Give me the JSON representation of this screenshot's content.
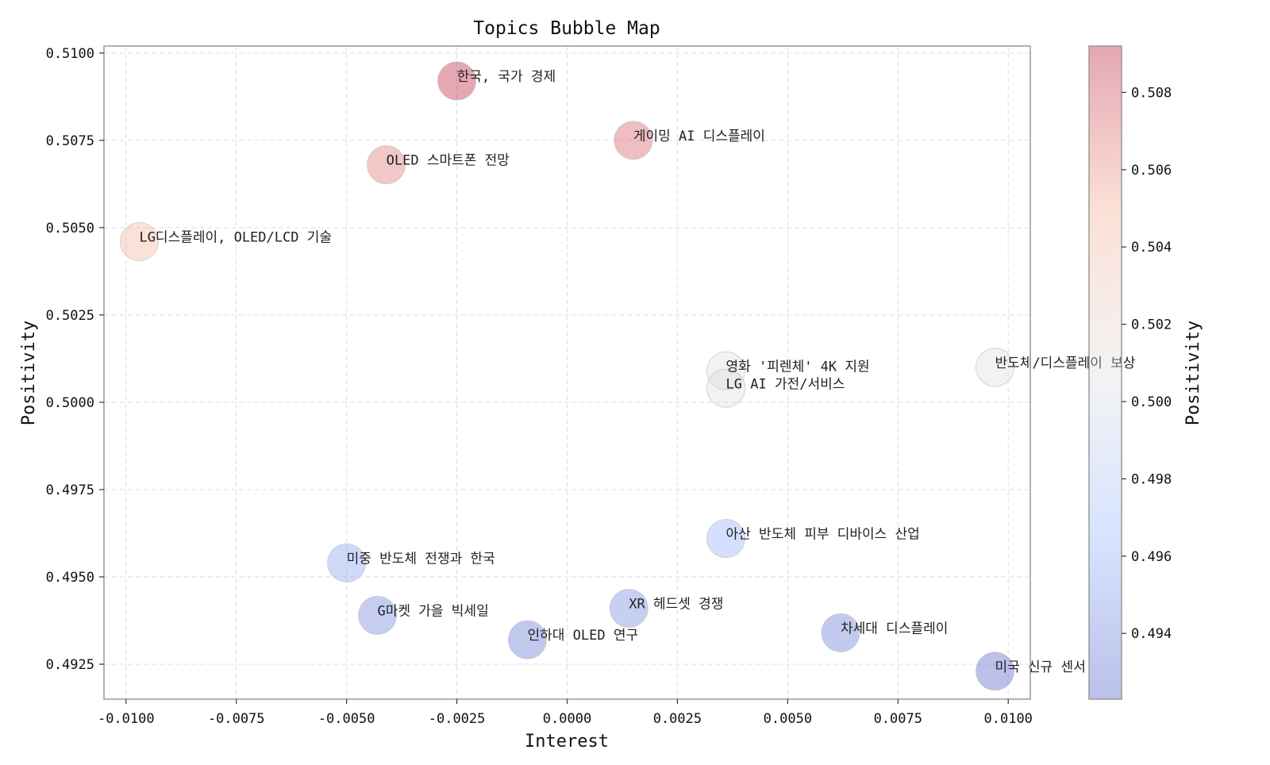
{
  "chart_data": {
    "type": "scatter",
    "title": "Topics Bubble Map",
    "xlabel": "Interest",
    "ylabel": "Positivity",
    "xlim": [
      -0.0105,
      0.0105
    ],
    "ylim": [
      0.4915,
      0.5102
    ],
    "xticks": [
      "-0.0100",
      "-0.0075",
      "-0.0050",
      "-0.0025",
      "0.0000",
      "0.0025",
      "0.0050",
      "0.0075",
      "0.0100"
    ],
    "xtick_values": [
      -0.01,
      -0.0075,
      -0.005,
      -0.0025,
      0.0,
      0.0025,
      0.005,
      0.0075,
      0.01
    ],
    "yticks": [
      "0.4925",
      "0.4950",
      "0.4975",
      "0.5000",
      "0.5025",
      "0.5050",
      "0.5075",
      "0.5100"
    ],
    "ytick_values": [
      0.4925,
      0.495,
      0.4975,
      0.5,
      0.5025,
      0.505,
      0.5075,
      0.51
    ],
    "grid": true,
    "colorbar": {
      "label": "Positivity",
      "range": [
        0.4923,
        0.5092
      ],
      "ticks": [
        "0.494",
        "0.496",
        "0.498",
        "0.500",
        "0.502",
        "0.504",
        "0.506",
        "0.508"
      ],
      "tick_values": [
        0.494,
        0.496,
        0.498,
        0.5,
        0.502,
        0.504,
        0.506,
        0.508
      ],
      "colormap": "coolwarm",
      "low_color": "#3b4cc0",
      "mid_color": "#dddddd",
      "high_color": "#b40426",
      "alpha": 0.35
    },
    "points": [
      {
        "label": "한국, 국가 경제",
        "x": -0.0025,
        "y": 0.5092
      },
      {
        "label": "게이밍 AI 디스플레이",
        "x": 0.0015,
        "y": 0.5075
      },
      {
        "label": "OLED 스마트폰 전망",
        "x": -0.0041,
        "y": 0.5068
      },
      {
        "label": "LG디스플레이, OLED/LCD 기술",
        "x": -0.0097,
        "y": 0.5046
      },
      {
        "label": "영화 '피렌체' 4K 지원",
        "x": 0.0036,
        "y": 0.5009
      },
      {
        "label": "LG AI 가전/서비스",
        "x": 0.0036,
        "y": 0.5004
      },
      {
        "label": "반도체/디스플레이 보상",
        "x": 0.0097,
        "y": 0.501
      },
      {
        "label": "아산 반도체 피부 디바이스 산업",
        "x": 0.0036,
        "y": 0.4961
      },
      {
        "label": "미중 반도체 전쟁과 한국",
        "x": -0.005,
        "y": 0.4954
      },
      {
        "label": "G마켓 가을 빅세일",
        "x": -0.0043,
        "y": 0.4939
      },
      {
        "label": "XR 헤드셋 경쟁",
        "x": 0.0014,
        "y": 0.4941
      },
      {
        "label": "인하대 OLED 연구",
        "x": -0.0009,
        "y": 0.4932
      },
      {
        "label": "차세대 디스플레이",
        "x": 0.0062,
        "y": 0.4934
      },
      {
        "label": "미국 신규 센서",
        "x": 0.0097,
        "y": 0.4923
      }
    ]
  }
}
